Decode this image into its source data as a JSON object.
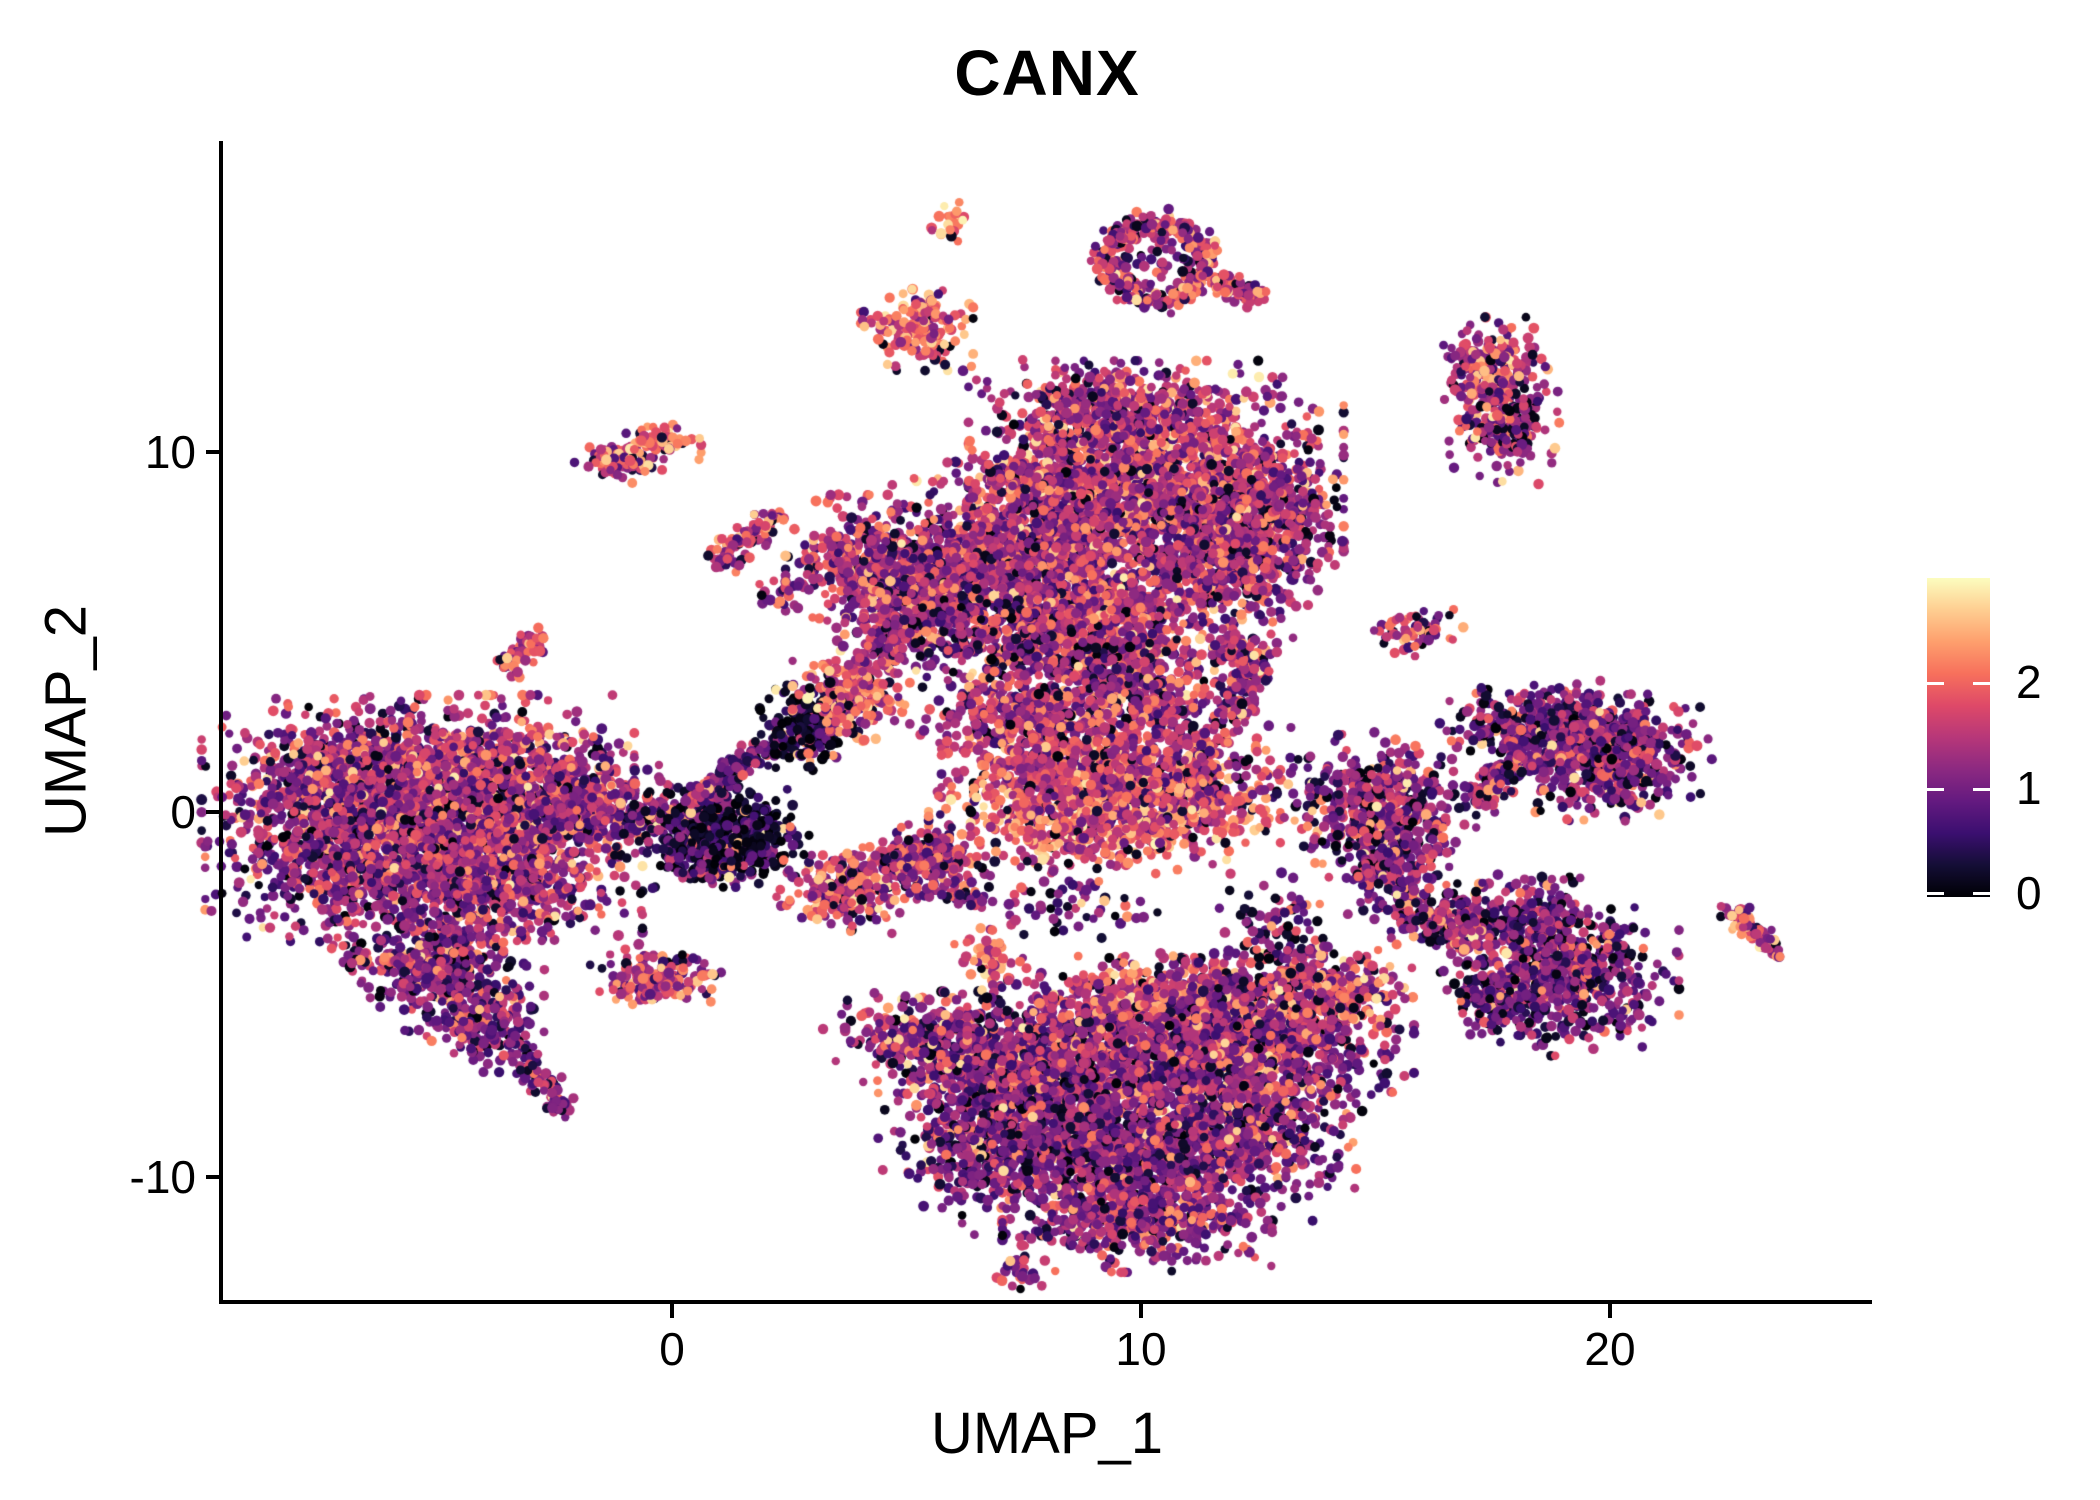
{
  "title": "CANX",
  "axes": {
    "x": {
      "label": "UMAP_1",
      "ticks": [
        {
          "label": "0",
          "value": 0
        },
        {
          "label": "10",
          "value": 10
        },
        {
          "label": "20",
          "value": 20
        }
      ]
    },
    "y": {
      "label": "UMAP_2",
      "ticks": [
        {
          "label": "10",
          "value": 10
        },
        {
          "label": "0",
          "value": 0
        },
        {
          "label": "-10",
          "value": -10
        }
      ]
    }
  },
  "colorbar": {
    "min": 0,
    "max": 3,
    "ticks": [
      {
        "label": "2",
        "value": 2
      },
      {
        "label": "1",
        "value": 1
      },
      {
        "label": "0",
        "value": 0
      }
    ]
  },
  "colors": {
    "background": "#ffffff",
    "axis": "#000000",
    "text": "#000000",
    "colormap_name": "magma",
    "colormap_stops": [
      [
        0.0,
        "#000004"
      ],
      [
        0.1,
        "#140e36"
      ],
      [
        0.2,
        "#3b0f70"
      ],
      [
        0.3,
        "#641a80"
      ],
      [
        0.4,
        "#8c2981"
      ],
      [
        0.5,
        "#b73779"
      ],
      [
        0.6,
        "#de4968"
      ],
      [
        0.7,
        "#f7705c"
      ],
      [
        0.8,
        "#fe9f6d"
      ],
      [
        0.9,
        "#fece91"
      ],
      [
        1.0,
        "#fcfdbf"
      ]
    ]
  },
  "chart_data": {
    "type": "scatter",
    "title": "CANX",
    "xlabel": "UMAP_1",
    "ylabel": "UMAP_2",
    "xlim": [
      -9.6,
      25.7
    ],
    "ylim": [
      -13.5,
      18.5
    ],
    "x_ticks": [
      0,
      10,
      20
    ],
    "y_ticks": [
      -10,
      0,
      10
    ],
    "grid": false,
    "legend_position": "right",
    "color_scale": {
      "min": 0,
      "max": 3,
      "palette": "magma",
      "ticks": [
        0,
        1,
        2
      ]
    },
    "n_points_approx": 25000,
    "point_radius_px": 5,
    "clusters": [
      {
        "id": "left-a1",
        "shape": "blob",
        "cx": -6.8,
        "cy": 1.0,
        "sx": 1.3,
        "sy": 0.85,
        "n": 850,
        "mu": 1.25
      },
      {
        "id": "left-a2",
        "shape": "blob",
        "cx": -4.2,
        "cy": 0.85,
        "sx": 1.35,
        "sy": 0.95,
        "n": 950,
        "mu": 1.45,
        "hot": 0.07
      },
      {
        "id": "left-a3",
        "shape": "blob",
        "cx": -6.6,
        "cy": -1.4,
        "sx": 1.35,
        "sy": 1.0,
        "n": 850,
        "mu": 1.2
      },
      {
        "id": "left-a4",
        "shape": "blob",
        "cx": -3.9,
        "cy": -1.6,
        "sx": 1.3,
        "sy": 1.1,
        "n": 900,
        "mu": 1.3
      },
      {
        "id": "left-a5",
        "shape": "blob",
        "cx": -2.3,
        "cy": 0.2,
        "sx": 0.8,
        "sy": 0.75,
        "n": 360,
        "mu": 1.35
      },
      {
        "id": "left-tail1",
        "shape": "blob",
        "cx": -5.0,
        "cy": -4.3,
        "sx": 0.75,
        "sy": 0.7,
        "n": 360,
        "mu": 1.15
      },
      {
        "id": "left-tail2",
        "shape": "blob",
        "cx": -4.0,
        "cy": -5.8,
        "sx": 0.5,
        "sy": 0.55,
        "n": 190,
        "mu": 1.1
      },
      {
        "id": "left-tail3",
        "shape": "streak",
        "x1": -3.4,
        "y1": -6.5,
        "x2": -2.3,
        "y2": -8.2,
        "jit": 0.16,
        "n": 95,
        "mu": 1.15
      },
      {
        "id": "hook-1",
        "shape": "blob",
        "cx": 0.25,
        "cy": -0.2,
        "sx": 0.55,
        "sy": 0.4,
        "n": 220,
        "mu": 0.8,
        "black": 0.2
      },
      {
        "id": "hook-2",
        "shape": "blob",
        "cx": 1.4,
        "cy": -0.7,
        "sx": 0.6,
        "sy": 0.55,
        "n": 380,
        "mu": 0.45,
        "black": 0.32
      },
      {
        "id": "hook-3",
        "shape": "blob",
        "cx": 0.7,
        "cy": -1.35,
        "sx": 0.5,
        "sy": 0.3,
        "n": 150,
        "mu": 0.7,
        "black": 0.22
      },
      {
        "id": "hook-gap",
        "shape": "blob",
        "cx": -1.2,
        "cy": -0.2,
        "sx": 0.5,
        "sy": 0.45,
        "n": 70,
        "mu": 1.2
      },
      {
        "id": "bridge",
        "shape": "streak",
        "x1": 0.5,
        "y1": 0.4,
        "x2": 2.5,
        "y2": 2.2,
        "jit": 0.17,
        "n": 150,
        "mu": 1.0,
        "black": 0.12
      },
      {
        "id": "funnel-dark",
        "shape": "blob",
        "cx": 2.9,
        "cy": 2.4,
        "sx": 0.42,
        "sy": 0.5,
        "n": 230,
        "mu": 0.4,
        "black": 0.42
      },
      {
        "id": "funnel-bright",
        "shape": "blob",
        "cx": 3.8,
        "cy": 3.2,
        "sx": 0.5,
        "sy": 0.5,
        "n": 220,
        "mu": 1.75,
        "hot": 0.12
      },
      {
        "id": "funnel-neck",
        "shape": "streak",
        "x1": 4.2,
        "y1": 4.1,
        "x2": 5.2,
        "y2": 5.2,
        "jit": 0.28,
        "n": 130,
        "mu": 1.3
      },
      {
        "id": "top-main",
        "shape": "blob",
        "cx": 10.3,
        "cy": 9.2,
        "sx": 1.6,
        "sy": 1.3,
        "n": 1700,
        "mu": 1.45,
        "hot": 0.07
      },
      {
        "id": "top-mid",
        "shape": "blob",
        "cx": 7.8,
        "cy": 7.4,
        "sx": 1.25,
        "sy": 1.15,
        "n": 1000,
        "mu": 1.35
      },
      {
        "id": "top-left",
        "shape": "blob",
        "cx": 5.6,
        "cy": 6.3,
        "sx": 1.05,
        "sy": 0.85,
        "n": 600,
        "mu": 1.3
      },
      {
        "id": "top-arm",
        "shape": "blob",
        "cx": 4.4,
        "cy": 6.5,
        "sx": 0.8,
        "sy": 0.9,
        "n": 420,
        "mu": 1.35
      },
      {
        "id": "top-lower",
        "shape": "blob",
        "cx": 8.9,
        "cy": 5.3,
        "sx": 1.25,
        "sy": 0.8,
        "n": 700,
        "mu": 1.5,
        "hot": 0.09
      },
      {
        "id": "top-right-lobe",
        "shape": "blob",
        "cx": 11.9,
        "cy": 6.9,
        "sx": 0.85,
        "sy": 0.85,
        "n": 450,
        "mu": 1.3
      },
      {
        "id": "top-crown",
        "shape": "blob",
        "cx": 9.2,
        "cy": 11.1,
        "sx": 1.0,
        "sy": 0.55,
        "n": 320,
        "mu": 1.35
      },
      {
        "id": "top-right-edge",
        "shape": "blob",
        "cx": 12.6,
        "cy": 8.4,
        "sx": 0.7,
        "sy": 0.8,
        "n": 300,
        "mu": 1.4
      },
      {
        "id": "top-fringe",
        "shape": "blob",
        "cx": 8.6,
        "cy": 4.2,
        "sx": 1.6,
        "sy": 0.55,
        "n": 170,
        "mu": 1.1,
        "black": 0.15
      },
      {
        "id": "mid-scatter",
        "shape": "blob",
        "cx": 6.7,
        "cy": 4.8,
        "sx": 0.9,
        "sy": 0.8,
        "n": 130,
        "mu": 1.1,
        "black": 0.2
      },
      {
        "id": "mid-wing-left",
        "shape": "blob",
        "cx": 7.4,
        "cy": 2.5,
        "sx": 0.85,
        "sy": 0.55,
        "n": 320,
        "mu": 1.4
      },
      {
        "id": "mid-top",
        "shape": "blob",
        "cx": 9.8,
        "cy": 3.1,
        "sx": 0.8,
        "sy": 0.65,
        "n": 330,
        "mu": 1.3,
        "black": 0.12
      },
      {
        "id": "mid-band",
        "shape": "blob",
        "cx": 8.6,
        "cy": 1.2,
        "sx": 1.15,
        "sy": 0.6,
        "n": 550,
        "mu": 1.6,
        "hot": 0.1
      },
      {
        "id": "mid-orange",
        "shape": "blob",
        "cx": 9.2,
        "cy": -0.2,
        "sx": 1.5,
        "sy": 0.6,
        "n": 700,
        "mu": 1.8,
        "hot": 0.12
      },
      {
        "id": "mid-right",
        "shape": "blob",
        "cx": 10.8,
        "cy": 0.9,
        "sx": 0.95,
        "sy": 0.7,
        "n": 430,
        "mu": 1.55
      },
      {
        "id": "mid-neck",
        "shape": "streak",
        "x1": 11.8,
        "y1": 2.3,
        "x2": 12.4,
        "y2": 4.2,
        "jit": 0.22,
        "n": 130,
        "mu": 1.25,
        "black": 0.1
      },
      {
        "id": "mid-neck-tip",
        "shape": "blob",
        "cx": 12.0,
        "cy": 4.5,
        "sx": 0.35,
        "sy": 0.22,
        "n": 50,
        "mu": 1.5
      },
      {
        "id": "rightmid",
        "shape": "blob",
        "cx": 15.0,
        "cy": 0.2,
        "sx": 0.85,
        "sy": 0.8,
        "n": 470,
        "mu": 1.2,
        "black": 0.1
      },
      {
        "id": "rightmid-tail",
        "shape": "blob",
        "cx": 15.3,
        "cy": -1.6,
        "sx": 0.5,
        "sy": 0.7,
        "n": 210,
        "mu": 1.1,
        "black": 0.12
      },
      {
        "id": "rightmid-bridge",
        "shape": "streak",
        "x1": 15.6,
        "y1": -2.6,
        "x2": 17.1,
        "y2": -3.5,
        "jit": 0.28,
        "n": 120,
        "mu": 1.2,
        "hot": 0.08
      },
      {
        "id": "bot-left",
        "shape": "blob",
        "cx": 7.0,
        "cy": -7.5,
        "sx": 1.05,
        "sy": 0.95,
        "n": 750,
        "mu": 1.2
      },
      {
        "id": "bot-arm",
        "shape": "blob",
        "cx": 5.2,
        "cy": -6.2,
        "sx": 0.8,
        "sy": 0.5,
        "n": 260,
        "mu": 1.2,
        "hot": 0.08
      },
      {
        "id": "bot-top",
        "shape": "blob",
        "cx": 9.4,
        "cy": -6.4,
        "sx": 1.25,
        "sy": 0.95,
        "n": 850,
        "mu": 1.25
      },
      {
        "id": "bot-orange",
        "shape": "blob",
        "cx": 10.8,
        "cy": -5.1,
        "sx": 1.3,
        "sy": 0.45,
        "n": 330,
        "mu": 1.8,
        "hot": 0.12
      },
      {
        "id": "bot-right-top",
        "shape": "blob",
        "cx": 12.3,
        "cy": -6.4,
        "sx": 1.4,
        "sy": 1.0,
        "n": 950,
        "mu": 1.2
      },
      {
        "id": "bot-ne",
        "shape": "blob",
        "cx": 13.9,
        "cy": -4.9,
        "sx": 0.75,
        "sy": 0.55,
        "n": 260,
        "mu": 1.55,
        "hot": 0.1
      },
      {
        "id": "bot-center",
        "shape": "blob",
        "cx": 9.0,
        "cy": -9.3,
        "sx": 1.25,
        "sy": 0.95,
        "n": 850,
        "mu": 1.1,
        "black": 0.11
      },
      {
        "id": "bot-right",
        "shape": "blob",
        "cx": 11.6,
        "cy": -8.9,
        "sx": 1.25,
        "sy": 0.95,
        "n": 800,
        "mu": 1.15
      },
      {
        "id": "bot-bottom",
        "shape": "blob",
        "cx": 9.9,
        "cy": -11.2,
        "sx": 1.15,
        "sy": 0.6,
        "n": 450,
        "mu": 1.3
      },
      {
        "id": "bot-sw",
        "shape": "blob",
        "cx": 6.6,
        "cy": -9.5,
        "sx": 0.7,
        "sy": 0.65,
        "n": 240,
        "mu": 1.05,
        "black": 0.13
      },
      {
        "id": "bot-wisp",
        "shape": "blob",
        "cx": 7.4,
        "cy": -12.6,
        "sx": 0.3,
        "sy": 0.25,
        "n": 25,
        "mu": 1.2
      },
      {
        "id": "bot-conn",
        "shape": "blob",
        "cx": 12.9,
        "cy": -3.3,
        "sx": 0.5,
        "sy": 0.65,
        "n": 90,
        "mu": 1.0,
        "black": 0.2
      },
      {
        "id": "eg-gap",
        "shape": "blob",
        "cx": 8.6,
        "cy": -2.6,
        "sx": 0.8,
        "sy": 0.5,
        "n": 60,
        "mu": 1.2,
        "black": 0.15
      },
      {
        "id": "but-top",
        "shape": "blob",
        "cx": 18.0,
        "cy": -3.1,
        "sx": 0.8,
        "sy": 0.55,
        "n": 320,
        "mu": 1.1,
        "black": 0.12
      },
      {
        "id": "but-main",
        "shape": "blob",
        "cx": 19.2,
        "cy": -4.6,
        "sx": 0.9,
        "sy": 0.85,
        "n": 500,
        "mu": 1.05,
        "black": 0.12
      },
      {
        "id": "but-left",
        "shape": "blob",
        "cx": 17.6,
        "cy": -5.1,
        "sx": 0.5,
        "sy": 0.5,
        "n": 170,
        "mu": 1.0,
        "black": 0.14
      },
      {
        "id": "but-bridge",
        "shape": "streak",
        "x1": 16.3,
        "y1": -3.0,
        "x2": 17.2,
        "y2": -3.5,
        "jit": 0.22,
        "n": 80,
        "mu": 1.3,
        "hot": 0.1
      },
      {
        "id": "right-top",
        "shape": "blob",
        "cx": 18.6,
        "cy": 2.3,
        "sx": 0.9,
        "sy": 0.55,
        "n": 420,
        "mu": 1.15,
        "black": 0.11
      },
      {
        "id": "right-main",
        "shape": "blob",
        "cx": 19.9,
        "cy": 1.5,
        "sx": 0.9,
        "sy": 0.7,
        "n": 520,
        "mu": 1.2,
        "black": 0.1
      },
      {
        "id": "right-tail",
        "shape": "streak",
        "x1": 17.2,
        "y1": 0.3,
        "x2": 18.0,
        "y2": 1.4,
        "jit": 0.2,
        "n": 110,
        "mu": 1.1
      },
      {
        "id": "tr-upper",
        "shape": "blob",
        "cx": 17.4,
        "cy": 12.4,
        "sx": 0.5,
        "sy": 0.5,
        "n": 190,
        "mu": 1.4,
        "hot": 0.08
      },
      {
        "id": "tr-lower",
        "shape": "blob",
        "cx": 17.7,
        "cy": 10.8,
        "sx": 0.5,
        "sy": 0.7,
        "n": 240,
        "mu": 1.35,
        "black": 0.1
      },
      {
        "id": "arc-ring",
        "shape": "ring",
        "cx": 10.3,
        "cy": 15.2,
        "rx": 1.0,
        "ry": 1.05,
        "jit": 0.18,
        "n": 330,
        "mu": 1.45,
        "hot": 0.1,
        "black": 0.1
      },
      {
        "id": "arc-tail",
        "shape": "streak",
        "x1": 11.4,
        "y1": 14.7,
        "x2": 12.6,
        "y2": 14.2,
        "jit": 0.13,
        "n": 90,
        "mu": 1.6,
        "hot": 0.12
      },
      {
        "id": "arc-inner",
        "shape": "blob",
        "cx": 10.3,
        "cy": 15.2,
        "sx": 0.45,
        "sy": 0.4,
        "n": 30,
        "mu": 0.9,
        "black": 0.3
      },
      {
        "id": "isl-orange",
        "shape": "blob",
        "cx": 5.2,
        "cy": 13.3,
        "sx": 0.48,
        "sy": 0.45,
        "n": 170,
        "mu": 1.9,
        "hot": 0.18
      },
      {
        "id": "isl-tiny-top",
        "shape": "blob",
        "cx": 5.9,
        "cy": 16.2,
        "sx": 0.17,
        "sy": 0.26,
        "n": 22,
        "mu": 2.0,
        "hot": 0.2
      },
      {
        "id": "isl-streak",
        "shape": "streak",
        "x1": 6.8,
        "y1": 9.35,
        "x2": 8.3,
        "y2": 9.0,
        "jit": 0.13,
        "n": 95,
        "mu": 1.5,
        "hot": 0.12
      },
      {
        "id": "isl-pair-left",
        "shape": "blob",
        "cx": -1.15,
        "cy": 9.7,
        "sx": 0.38,
        "sy": 0.25,
        "n": 85,
        "mu": 1.6,
        "hot": 0.1
      },
      {
        "id": "isl-pair-right",
        "shape": "blob",
        "cx": -0.2,
        "cy": 10.2,
        "sx": 0.32,
        "sy": 0.22,
        "n": 70,
        "mu": 1.9,
        "hot": 0.25
      },
      {
        "id": "isl-diag",
        "shape": "streak",
        "x1": 1.0,
        "y1": 6.9,
        "x2": 2.2,
        "y2": 8.2,
        "jit": 0.15,
        "n": 90,
        "mu": 1.55,
        "hot": 0.15
      },
      {
        "id": "isl-diag-drip",
        "shape": "blob",
        "cx": 2.2,
        "cy": 6.1,
        "sx": 0.22,
        "sy": 0.3,
        "n": 18,
        "mu": 1.2
      },
      {
        "id": "isl-q",
        "shape": "streak",
        "x1": -3.5,
        "y1": 3.9,
        "x2": -2.8,
        "y2": 4.9,
        "jit": 0.13,
        "n": 60,
        "mu": 1.5,
        "hot": 0.1
      },
      {
        "id": "isl-r",
        "shape": "blob",
        "cx": 15.9,
        "cy": 5.0,
        "sx": 0.38,
        "sy": 0.28,
        "n": 70,
        "mu": 1.4,
        "hot": 0.1
      },
      {
        "id": "isl-s",
        "shape": "blob",
        "cx": 3.7,
        "cy": -2.1,
        "sx": 0.6,
        "sy": 0.5,
        "n": 260,
        "mu": 1.6,
        "hot": 0.12
      },
      {
        "id": "isl-s-arm",
        "shape": "streak",
        "x1": 4.3,
        "y1": -1.5,
        "x2": 5.0,
        "y2": -1.1,
        "jit": 0.13,
        "n": 35,
        "mu": 1.3
      },
      {
        "id": "isl-t",
        "shape": "blob",
        "cx": 5.4,
        "cy": -1.4,
        "sx": 0.55,
        "sy": 0.45,
        "n": 220,
        "mu": 1.3,
        "black": 0.1
      },
      {
        "id": "isl-t-chain",
        "shape": "streak",
        "x1": 5.8,
        "y1": -2.3,
        "x2": 6.8,
        "y2": -2.5,
        "jit": 0.1,
        "n": 28,
        "mu": 1.1,
        "black": 0.15
      },
      {
        "id": "isl-u",
        "shape": "blob",
        "cx": -6.7,
        "cy": -4.1,
        "sx": 0.22,
        "sy": 0.18,
        "n": 20,
        "mu": 1.5,
        "hot": 0.15
      },
      {
        "id": "isl-v",
        "shape": "blob",
        "cx": -0.35,
        "cy": -4.6,
        "sx": 0.55,
        "sy": 0.38,
        "n": 160,
        "mu": 1.5,
        "hot": 0.12
      },
      {
        "id": "isl-w",
        "shape": "blob",
        "cx": 6.7,
        "cy": -4.1,
        "sx": 0.28,
        "sy": 0.42,
        "n": 60,
        "mu": 2.0,
        "hot": 0.25
      },
      {
        "id": "isl-w-drip",
        "shape": "blob",
        "cx": 6.8,
        "cy": -5.1,
        "sx": 0.15,
        "sy": 0.2,
        "n": 10,
        "mu": 0.8,
        "black": 0.3
      },
      {
        "id": "isl-y",
        "shape": "streak",
        "x1": 22.5,
        "y1": -2.7,
        "x2": 23.5,
        "y2": -3.8,
        "jit": 0.13,
        "n": 75,
        "mu": 1.5,
        "hot": 0.12
      }
    ]
  }
}
